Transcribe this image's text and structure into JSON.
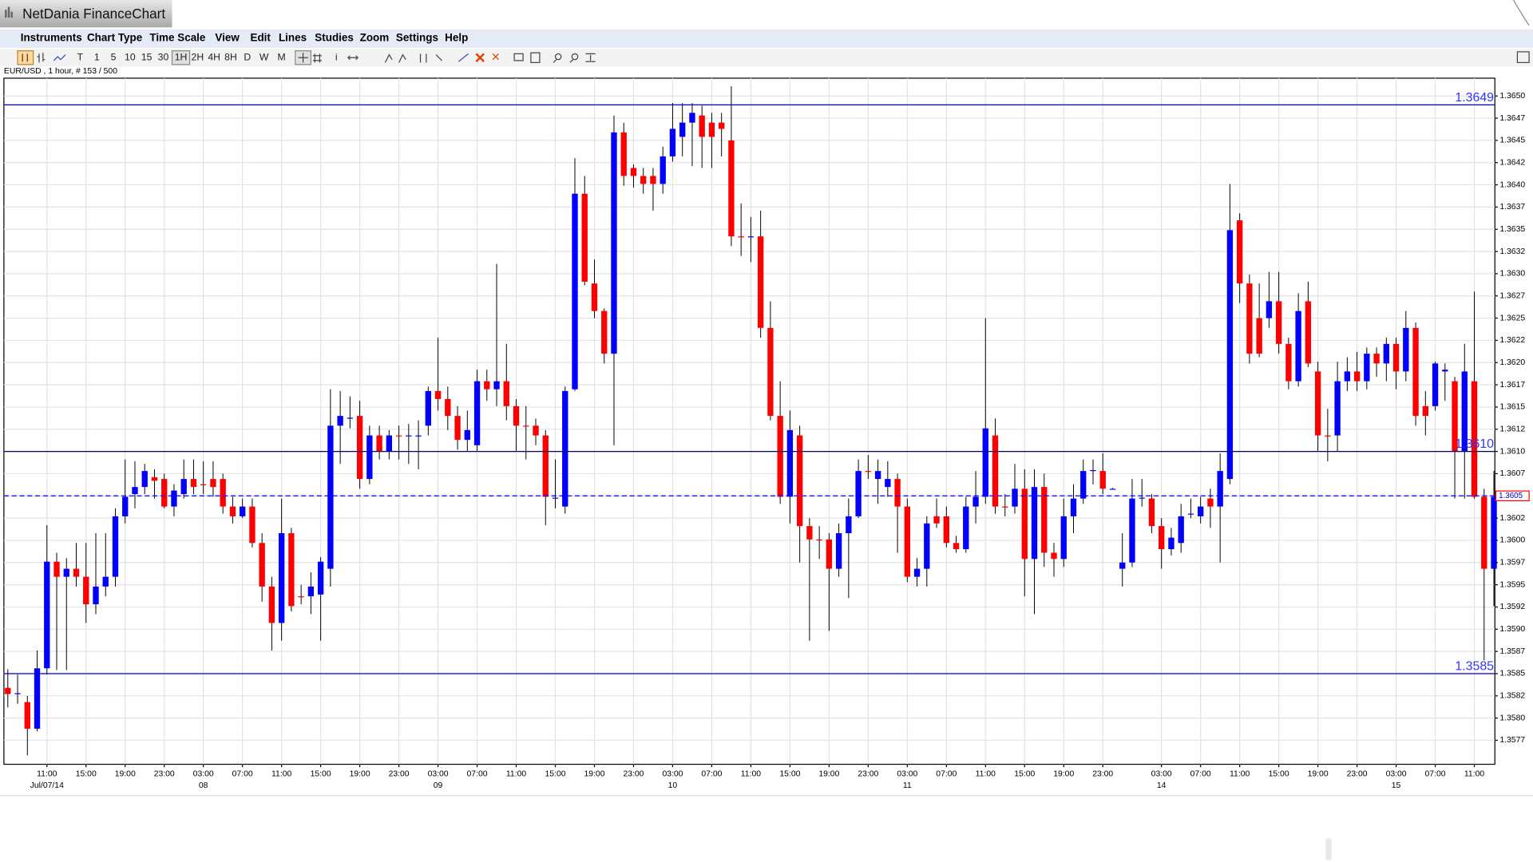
{
  "window_title": "NetDania FinanceChart",
  "menu": [
    "Instruments",
    "Chart Type",
    "Time Scale",
    "View",
    "Edit",
    "Lines",
    "Studies",
    "Zoom",
    "Settings",
    "Help"
  ],
  "toolbar": [
    "T",
    "1",
    "5",
    "10",
    "15",
    "30",
    "1H",
    "2H",
    "4H",
    "8H",
    "D",
    "W",
    "M"
  ],
  "info_button": "i",
  "chart_data": {
    "type": "candlestick",
    "title": "EUR/USD , 1 hour, # 153 / 500",
    "up_color": "#0000ff",
    "down_color": "#ff0000",
    "grid": true,
    "ylim": [
      1.35748,
      1.3652
    ],
    "yticks": [
      {
        "value": 1.365,
        "label": "1.3650"
      },
      {
        "value": 1.36475,
        "label": "1.3647"
      },
      {
        "value": 1.3645,
        "label": "1.3645"
      },
      {
        "value": 1.36425,
        "label": "1.3642"
      },
      {
        "value": 1.364,
        "label": "1.3640"
      },
      {
        "value": 1.36375,
        "label": "1.3637"
      },
      {
        "value": 1.3635,
        "label": "1.3635"
      },
      {
        "value": 1.36325,
        "label": "1.3632"
      },
      {
        "value": 1.363,
        "label": "1.3630"
      },
      {
        "value": 1.36275,
        "label": "1.3627"
      },
      {
        "value": 1.3625,
        "label": "1.3625"
      },
      {
        "value": 1.36225,
        "label": "1.3622"
      },
      {
        "value": 1.362,
        "label": "1.3620"
      },
      {
        "value": 1.36175,
        "label": "1.3617"
      },
      {
        "value": 1.3615,
        "label": "1.3615"
      },
      {
        "value": 1.36125,
        "label": "1.3612"
      },
      {
        "value": 1.361,
        "label": "1.3610"
      },
      {
        "value": 1.36075,
        "label": "1.3607"
      },
      {
        "value": 1.3605,
        "label": "1.3605"
      },
      {
        "value": 1.36025,
        "label": "1.3602"
      },
      {
        "value": 1.36,
        "label": "1.3600"
      },
      {
        "value": 1.35975,
        "label": "1.3597"
      },
      {
        "value": 1.3595,
        "label": "1.3595"
      },
      {
        "value": 1.35925,
        "label": "1.3592"
      },
      {
        "value": 1.359,
        "label": "1.3590"
      },
      {
        "value": 1.35875,
        "label": "1.3587"
      },
      {
        "value": 1.3585,
        "label": "1.3585"
      },
      {
        "value": 1.35825,
        "label": "1.3582"
      },
      {
        "value": 1.358,
        "label": "1.3580"
      },
      {
        "value": 1.35775,
        "label": "1.3577"
      }
    ],
    "hlines": [
      {
        "value": 1.3649,
        "label": "1.3649",
        "color": "#0000cc"
      },
      {
        "value": 1.361,
        "label": "1.3610",
        "color": "#000066"
      },
      {
        "value": 1.3585,
        "label": "1.3585",
        "color": "#0000cc"
      }
    ],
    "last_price": {
      "value": 1.3605,
      "label": "1.3605",
      "color": "#0000ff"
    },
    "categories": [
      null,
      null,
      null,
      null,
      "11:00",
      null,
      null,
      null,
      "15:00",
      null,
      null,
      null,
      "19:00",
      null,
      null,
      null,
      "23:00",
      null,
      null,
      null,
      "03:00",
      null,
      null,
      null,
      "07:00",
      null,
      null,
      null,
      "11:00",
      null,
      null,
      null,
      "15:00",
      null,
      null,
      null,
      "19:00",
      null,
      null,
      null,
      "23:00",
      null,
      null,
      null,
      "03:00",
      null,
      null,
      null,
      "07:00",
      null,
      null,
      null,
      "11:00",
      null,
      null,
      null,
      "15:00",
      null,
      null,
      null,
      "19:00",
      null,
      null,
      null,
      "23:00",
      null,
      null,
      null,
      "03:00",
      null,
      null,
      null,
      "07:00",
      null,
      null,
      null,
      "11:00",
      null,
      null,
      null,
      "15:00",
      null,
      null,
      null,
      "19:00",
      null,
      null,
      null,
      "23:00",
      null,
      null,
      null,
      "03:00",
      null,
      null,
      null,
      "07:00",
      null,
      null,
      null,
      "11:00",
      null,
      null,
      null,
      "15:00",
      null,
      null,
      null,
      "19:00",
      null,
      null,
      null,
      "23:00",
      null,
      null,
      null,
      null,
      null,
      "03:00",
      null,
      null,
      null,
      "07:00",
      null,
      null,
      null,
      "11:00",
      null,
      null,
      null,
      "15:00",
      null,
      null,
      null,
      "19:00",
      null,
      null,
      null,
      "23:00",
      null,
      null,
      null,
      "03:00",
      null,
      null,
      null,
      "07:00",
      null,
      null,
      null,
      "11:00",
      null,
      null
    ],
    "day_labels": [
      null,
      null,
      null,
      null,
      "Jul/07/14",
      null,
      null,
      null,
      null,
      null,
      null,
      null,
      null,
      null,
      null,
      null,
      null,
      null,
      null,
      null,
      "08",
      null,
      null,
      null,
      null,
      null,
      null,
      null,
      null,
      null,
      null,
      null,
      null,
      null,
      null,
      null,
      null,
      null,
      null,
      null,
      null,
      null,
      null,
      null,
      "09",
      null,
      null,
      null,
      null,
      null,
      null,
      null,
      null,
      null,
      null,
      null,
      null,
      null,
      null,
      null,
      null,
      null,
      null,
      null,
      null,
      null,
      null,
      null,
      "10",
      null,
      null,
      null,
      null,
      null,
      null,
      null,
      null,
      null,
      null,
      null,
      null,
      null,
      null,
      null,
      null,
      null,
      null,
      null,
      null,
      null,
      null,
      null,
      "11",
      null,
      null,
      null,
      null,
      null,
      null,
      null,
      null,
      null,
      null,
      null,
      null,
      null,
      null,
      null,
      null,
      null,
      null,
      null,
      null,
      null,
      null,
      null,
      null,
      null,
      "14",
      null,
      null,
      null,
      null,
      null,
      null,
      null,
      null,
      null,
      null,
      null,
      null,
      null,
      null,
      null,
      null,
      null,
      null,
      null,
      null,
      null,
      null,
      null,
      "15",
      null,
      null,
      null,
      null,
      null,
      null,
      null,
      null,
      null,
      null
    ],
    "open": [
      1.35834,
      1.35827,
      1.35818,
      1.35788,
      1.35856,
      1.35976,
      1.35959,
      1.35968,
      1.35959,
      1.35928,
      1.35948,
      1.35959,
      1.36027,
      1.36052,
      1.3606,
      1.36071,
      1.36069,
      1.36038,
      1.36052,
      1.36069,
      1.36063,
      1.36069,
      1.36069,
      1.36038,
      1.36027,
      1.36038,
      1.35997,
      1.35948,
      1.35907,
      1.36008,
      1.35937,
      1.35937,
      1.35939,
      1.35968,
      1.36129,
      1.36137,
      1.3614,
      1.36069,
      1.36118,
      1.361,
      1.36118,
      1.36118,
      1.36117,
      1.36129,
      1.36168,
      1.36159,
      1.3614,
      1.36113,
      1.36107,
      1.36179,
      1.3617,
      1.36179,
      1.36151,
      1.36129,
      1.36129,
      1.36118,
      1.36047,
      1.36038,
      1.3617,
      1.3639,
      1.36289,
      1.36258,
      1.3621,
      1.36459,
      1.36419,
      1.3641,
      1.3641,
      1.36401,
      1.36432,
      1.36454,
      1.3647,
      1.36478,
      1.3647,
      1.3647,
      1.3645,
      1.36342,
      1.36341,
      1.36342,
      1.36239,
      1.3614,
      1.36049,
      1.36118,
      1.36016,
      1.36001,
      1.36001,
      1.35968,
      1.36008,
      1.36027,
      1.36078,
      1.36069,
      1.3606,
      1.36069,
      1.36038,
      1.35959,
      1.35968,
      1.36027,
      1.36027,
      1.35997,
      1.3599,
      1.36038,
      1.36049,
      1.36118,
      1.36038,
      1.36038,
      1.36058,
      1.35979,
      1.3606,
      1.35986,
      1.35979,
      1.36027,
      1.36047,
      1.36078,
      1.36078,
      1.36058,
      1.35968,
      1.35975,
      1.36047,
      1.36047,
      1.36016,
      1.3599,
      1.35997,
      1.3603,
      1.36027,
      1.36047,
      1.36038,
      1.36069,
      1.3636,
      1.36289,
      1.3625,
      1.3625,
      1.36269,
      1.36221,
      1.36179,
      1.36269,
      1.3619,
      1.36118,
      1.36118,
      1.36179,
      1.3619,
      1.36179,
      1.3621,
      1.36199,
      1.36221,
      1.3619,
      1.36239,
      1.36151,
      1.36151,
      1.3619,
      1.36179,
      1.361,
      1.36179,
      1.36049,
      1.35968
    ],
    "high": [
      1.35855,
      1.35849,
      1.35825,
      1.35876,
      1.36017,
      1.35986,
      1.3598,
      1.35997,
      1.35997,
      1.36008,
      1.36008,
      1.36036,
      1.36091,
      1.36089,
      1.36086,
      1.3608,
      1.36075,
      1.36063,
      1.36091,
      1.36091,
      1.36089,
      1.36089,
      1.36075,
      1.36049,
      1.36047,
      1.36047,
      1.36008,
      1.35959,
      1.36047,
      1.36014,
      1.3595,
      1.35964,
      1.35981,
      1.3617,
      1.36168,
      1.36162,
      1.36157,
      1.36129,
      1.36129,
      1.36124,
      1.36129,
      1.36131,
      1.36135,
      1.36173,
      1.36228,
      1.36173,
      1.36151,
      1.36146,
      1.36192,
      1.36192,
      1.36311,
      1.36221,
      1.36159,
      1.36151,
      1.36137,
      1.36124,
      1.36091,
      1.36173,
      1.3643,
      1.3641,
      1.36316,
      1.36261,
      1.36478,
      1.3647,
      1.36423,
      1.36419,
      1.36419,
      1.36443,
      1.36492,
      1.36492,
      1.36492,
      1.36489,
      1.36481,
      1.36481,
      1.36511,
      1.36379,
      1.36364,
      1.36371,
      1.36269,
      1.36179,
      1.36146,
      1.36129,
      1.36025,
      1.36016,
      1.36008,
      1.36019,
      1.36047,
      1.36091,
      1.36096,
      1.36091,
      1.36089,
      1.36075,
      1.36047,
      1.3598,
      1.36027,
      1.36047,
      1.36038,
      1.36005,
      1.36049,
      1.36078,
      1.3625,
      1.36137,
      1.36052,
      1.36086,
      1.3608,
      1.3608,
      1.36075,
      1.35997,
      1.36047,
      1.36063,
      1.36091,
      1.36091,
      1.36098,
      1.36059,
      1.36008,
      1.36069,
      1.36069,
      1.36052,
      1.36025,
      1.36014,
      1.36041,
      1.36047,
      1.36049,
      1.36058,
      1.36098,
      1.36401,
      1.36368,
      1.36299,
      1.36289,
      1.36302,
      1.36302,
      1.36228,
      1.36278,
      1.36291,
      1.36201,
      1.36148,
      1.36201,
      1.36206,
      1.36212,
      1.36217,
      1.36217,
      1.36228,
      1.36228,
      1.36258,
      1.36245,
      1.36168,
      1.36201,
      1.36199,
      1.36184,
      1.36221,
      1.3628,
      1.36058,
      1.36078
    ],
    "low": [
      1.35812,
      1.35816,
      1.35758,
      1.35785,
      1.35849,
      1.35854,
      1.35854,
      1.35948,
      1.35907,
      1.35917,
      1.35937,
      1.35948,
      1.36019,
      1.36036,
      1.36052,
      1.36047,
      1.36036,
      1.36027,
      1.36047,
      1.36052,
      1.36052,
      1.36049,
      1.3603,
      1.36019,
      1.36025,
      1.35992,
      1.35931,
      1.35876,
      1.35887,
      1.3592,
      1.35928,
      1.35917,
      1.35887,
      1.35948,
      1.36086,
      1.36126,
      1.36058,
      1.36063,
      1.36091,
      1.36091,
      1.36091,
      1.36086,
      1.3608,
      1.36118,
      1.36146,
      1.36124,
      1.36102,
      1.361,
      1.361,
      1.36157,
      1.36151,
      1.36135,
      1.361,
      1.36091,
      1.36107,
      1.36017,
      1.36036,
      1.3603,
      1.36168,
      1.36287,
      1.3625,
      1.36199,
      1.36107,
      1.36399,
      1.36397,
      1.3639,
      1.36371,
      1.3639,
      1.36426,
      1.36432,
      1.36421,
      1.36419,
      1.36419,
      1.36432,
      1.36331,
      1.3632,
      1.36313,
      1.36228,
      1.36135,
      1.36041,
      1.36019,
      1.35975,
      1.35887,
      1.35979,
      1.35898,
      1.35959,
      1.35935,
      1.36025,
      1.36069,
      1.36041,
      1.36049,
      1.35986,
      1.35953,
      1.35948,
      1.35948,
      1.36014,
      1.35992,
      1.35986,
      1.35986,
      1.36019,
      1.36041,
      1.3603,
      1.36027,
      1.3603,
      1.35937,
      1.35917,
      1.3597,
      1.35959,
      1.3597,
      1.36008,
      1.36041,
      1.36063,
      1.36052,
      1.36057,
      1.35948,
      1.3597,
      1.36038,
      1.36008,
      1.35968,
      1.35983,
      1.35986,
      1.36025,
      1.36019,
      1.36014,
      1.35975,
      1.36063,
      1.36267,
      1.36199,
      1.36206,
      1.36239,
      1.3621,
      1.3617,
      1.36173,
      1.36195,
      1.361,
      1.36089,
      1.361,
      1.36168,
      1.36168,
      1.3617,
      1.36184,
      1.36179,
      1.3617,
      1.36179,
      1.36129,
      1.36118,
      1.36146,
      1.36157,
      1.36047,
      1.36047,
      1.36047,
      1.35865,
      1.35926
    ],
    "close": [
      1.35827,
      1.35828,
      1.35788,
      1.35856,
      1.35976,
      1.35959,
      1.35968,
      1.35959,
      1.35928,
      1.35948,
      1.35959,
      1.36027,
      1.36049,
      1.3606,
      1.36078,
      1.36067,
      1.36038,
      1.36056,
      1.36069,
      1.3606,
      1.36062,
      1.3606,
      1.36038,
      1.36027,
      1.36038,
      1.35997,
      1.35948,
      1.35907,
      1.36008,
      1.35926,
      1.35936,
      1.35948,
      1.35976,
      1.36129,
      1.3614,
      1.36138,
      1.36069,
      1.36118,
      1.361,
      1.36118,
      1.36117,
      1.36118,
      1.36118,
      1.36168,
      1.36159,
      1.3614,
      1.36113,
      1.36124,
      1.36179,
      1.3617,
      1.36179,
      1.36151,
      1.36129,
      1.36128,
      1.36118,
      1.36049,
      1.36048,
      1.36168,
      1.3639,
      1.36291,
      1.36258,
      1.3621,
      1.36459,
      1.3641,
      1.3641,
      1.36401,
      1.36401,
      1.36432,
      1.36463,
      1.3647,
      1.36481,
      1.36454,
      1.36454,
      1.36463,
      1.36342,
      1.36341,
      1.36342,
      1.36239,
      1.3614,
      1.36049,
      1.36124,
      1.36016,
      1.36001,
      1.36,
      1.35968,
      1.36008,
      1.36027,
      1.36078,
      1.36077,
      1.36078,
      1.36069,
      1.36038,
      1.35959,
      1.35968,
      1.36019,
      1.36019,
      1.35997,
      1.3599,
      1.36038,
      1.36049,
      1.36126,
      1.36038,
      1.36037,
      1.36058,
      1.35979,
      1.3606,
      1.35986,
      1.35979,
      1.36027,
      1.36047,
      1.36078,
      1.36079,
      1.36058,
      1.36058,
      1.35975,
      1.36047,
      1.36048,
      1.36016,
      1.3599,
      1.36003,
      1.36027,
      1.3603,
      1.36038,
      1.36038,
      1.36078,
      1.36349,
      1.36289,
      1.3621,
      1.3621,
      1.36269,
      1.36221,
      1.36179,
      1.36258,
      1.36199,
      1.36118,
      1.36117,
      1.36179,
      1.3619,
      1.36179,
      1.3621,
      1.36199,
      1.36221,
      1.3619,
      1.36239,
      1.3614,
      1.3614,
      1.36199,
      1.36192,
      1.361,
      1.3619,
      1.36049,
      1.35968,
      1.36049
    ]
  }
}
